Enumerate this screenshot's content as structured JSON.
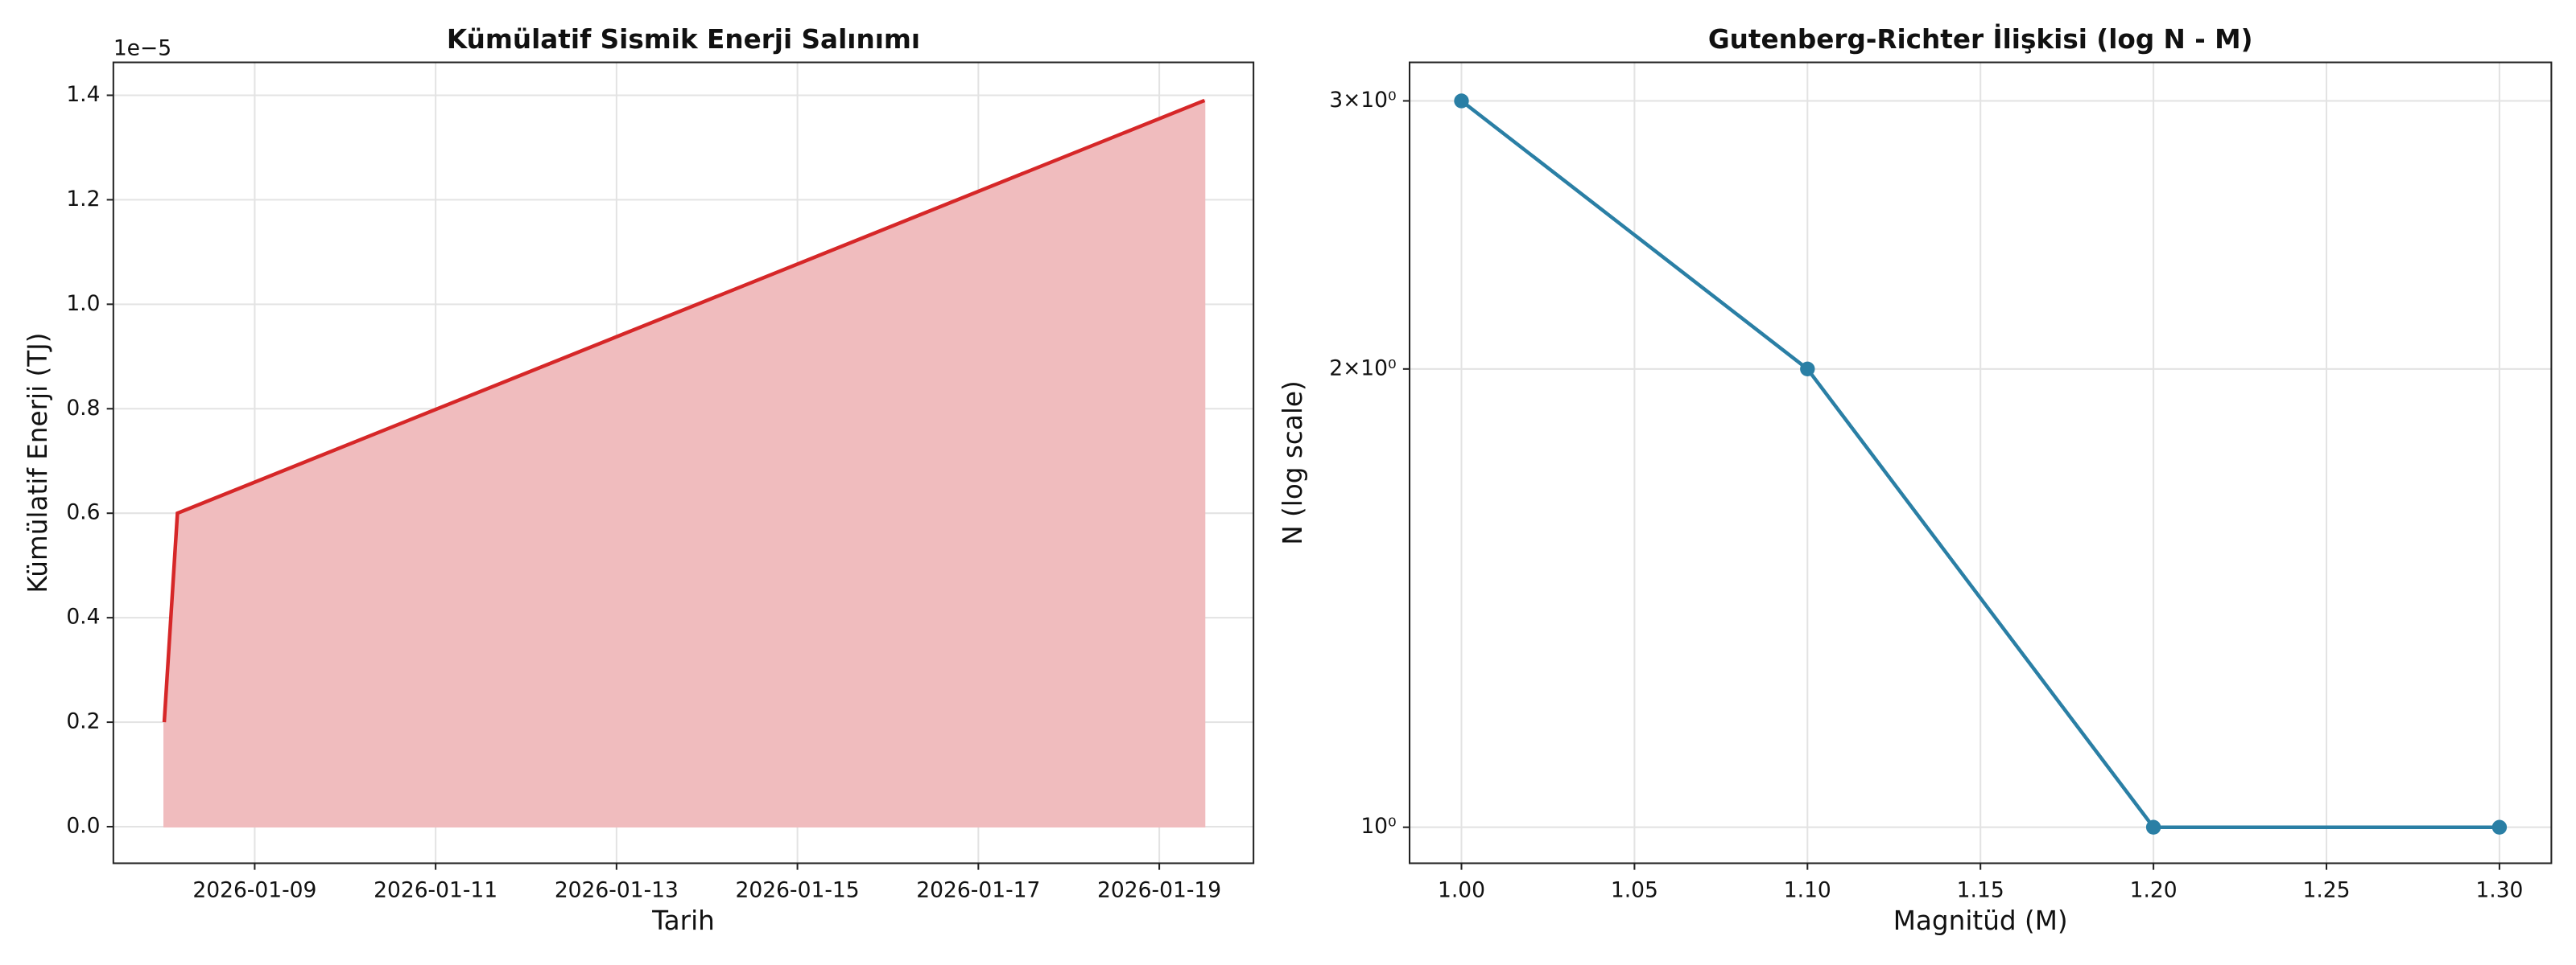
{
  "chart_data": [
    {
      "type": "area",
      "title": "Kümülatif Sismik Enerji Salınımı",
      "x_label": "Tarih",
      "y_label": "Kümülatif Enerji (TJ)",
      "y_offset_text": "1e−5",
      "x": [
        "2026-01-08T00:00",
        "2026-01-08T03:30",
        "2026-01-19T12:00"
      ],
      "values": [
        0.2,
        0.6,
        1.39
      ],
      "color": "#d62728",
      "fill_color": "#f0bcbe",
      "xlim": [
        "2026-01-07T10:30",
        "2026-01-20T01:00"
      ],
      "xticks": [
        "2026-01-09",
        "2026-01-11",
        "2026-01-13",
        "2026-01-15",
        "2026-01-17",
        "2026-01-19"
      ],
      "ylim": [
        -0.07,
        1.463
      ],
      "yticks": [
        {
          "value": 0,
          "label": "0.0"
        },
        {
          "value": 0.2,
          "label": "0.2"
        },
        {
          "value": 0.4,
          "label": "0.4"
        },
        {
          "value": 0.6,
          "label": "0.6"
        },
        {
          "value": 0.8,
          "label": "0.8"
        },
        {
          "value": 1,
          "label": "1.0"
        },
        {
          "value": 1.2,
          "label": "1.2"
        },
        {
          "value": 1.4,
          "label": "1.4"
        }
      ],
      "grid": true
    },
    {
      "type": "line",
      "title": "Gutenberg-Richter İlişkisi (log N - M)",
      "x_label": "Magnitüd (M)",
      "y_label": "N (log scale)",
      "x": [
        1.0,
        1.1,
        1.2,
        1.3
      ],
      "values": [
        3,
        2,
        1,
        1
      ],
      "color": "#2a7fa5",
      "markers": true,
      "xlim": [
        0.985,
        1.315
      ],
      "xticks": [
        {
          "value": 1.0,
          "label": "1.00"
        },
        {
          "value": 1.05,
          "label": "1.05"
        },
        {
          "value": 1.1,
          "label": "1.10"
        },
        {
          "value": 1.15,
          "label": "1.15"
        },
        {
          "value": 1.2,
          "label": "1.20"
        },
        {
          "value": 1.25,
          "label": "1.25"
        },
        {
          "value": 1.3,
          "label": "1.30"
        }
      ],
      "ylim": [
        0.947,
        3.18
      ],
      "yscale": "log",
      "yticks": [
        {
          "value": 1,
          "label": "10⁰"
        },
        {
          "value": 2,
          "label": "2×10⁰"
        },
        {
          "value": 3,
          "label": "3×10⁰"
        }
      ],
      "grid": true
    }
  ]
}
